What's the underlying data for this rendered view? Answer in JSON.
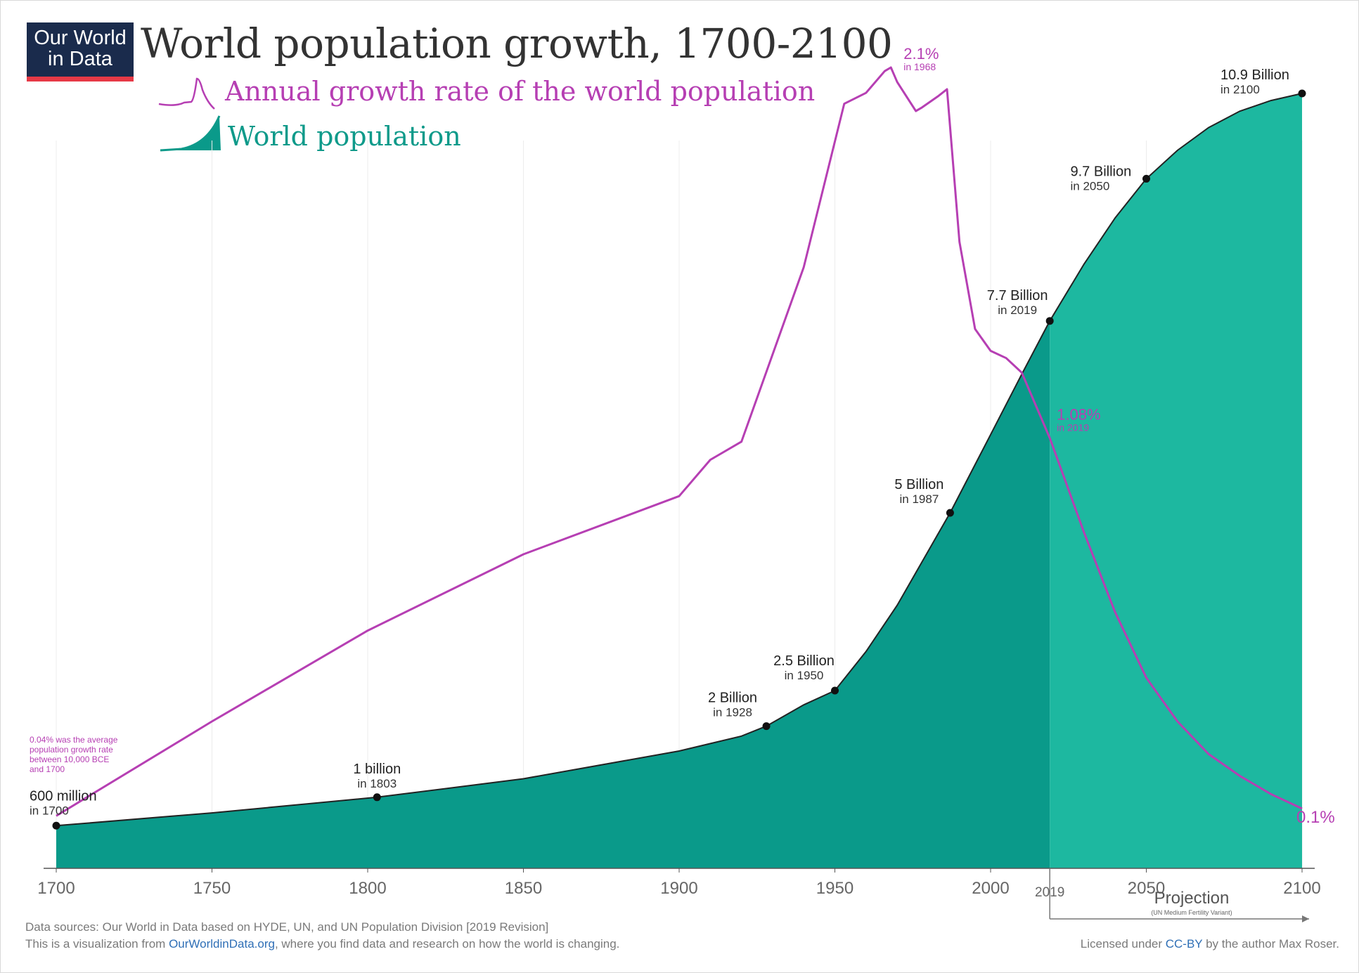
{
  "logo": {
    "line1": "Our World",
    "line2": "in Data"
  },
  "title": "World population growth, 1700-2100",
  "legend": {
    "growth_label": "Annual growth rate of the world population",
    "population_label": "World population"
  },
  "colors": {
    "population_fill": "#0a9a8a",
    "projection_fill": "#1db8a0",
    "growth_line": "#b63fb3",
    "population_line": "#222222"
  },
  "footer": {
    "sources": "Data sources: Our World in Data based on HYDE, UN, and UN Population Division [2019 Revision]",
    "visualization_prefix": "This is a visualization from ",
    "visualization_link": "OurWorldinData.org",
    "visualization_suffix": ", where you find data and research on how the world is changing.",
    "license_prefix": "Licensed under ",
    "license_link": "CC-BY",
    "license_suffix": " by the author Max Roser."
  },
  "chart_data": {
    "type": "area",
    "title": "World population growth, 1700-2100",
    "xlim": [
      1700,
      2100
    ],
    "x_ticks": [
      1700,
      1750,
      1800,
      1850,
      1900,
      1950,
      2000,
      2050,
      2100
    ],
    "projection_start_year": 2019,
    "projection_tick_label": "2019",
    "projection_label": "Projection",
    "projection_sublabel": "(UN Medium Fertility Variant)",
    "grid": true,
    "series": [
      {
        "name": "World population",
        "unit": "billion",
        "x": [
          1700,
          1750,
          1803,
          1850,
          1900,
          1920,
          1928,
          1940,
          1950,
          1960,
          1970,
          1987,
          2000,
          2010,
          2019,
          2030,
          2040,
          2050,
          2060,
          2070,
          2080,
          2090,
          2100
        ],
        "values": [
          0.6,
          0.78,
          1.0,
          1.26,
          1.65,
          1.86,
          2.0,
          2.3,
          2.5,
          3.05,
          3.7,
          5.0,
          6.1,
          6.95,
          7.7,
          8.5,
          9.15,
          9.7,
          10.1,
          10.42,
          10.65,
          10.8,
          10.9
        ]
      },
      {
        "name": "Annual growth rate of the world population",
        "unit": "%",
        "x": [
          1700,
          1750,
          1800,
          1850,
          1900,
          1910,
          1920,
          1940,
          1953,
          1960,
          1966,
          1968,
          1970,
          1976,
          1978,
          1983,
          1986,
          1990,
          1995,
          2000,
          2005,
          2010,
          2019,
          2030,
          2040,
          2050,
          2060,
          2070,
          2080,
          2090,
          2100
        ],
        "values": [
          0.04,
          0.3,
          0.55,
          0.76,
          0.92,
          1.02,
          1.07,
          1.55,
          2.0,
          2.03,
          2.09,
          2.1,
          2.06,
          1.98,
          1.99,
          2.02,
          2.04,
          1.62,
          1.38,
          1.32,
          1.3,
          1.26,
          1.08,
          0.82,
          0.6,
          0.42,
          0.3,
          0.21,
          0.15,
          0.1,
          0.06
        ]
      }
    ],
    "population_markers": [
      {
        "x": 1700,
        "value": 0.6,
        "label": "600 million",
        "sublabel": "in 1700"
      },
      {
        "x": 1803,
        "value": 1.0,
        "label": "1 billion",
        "sublabel": "in 1803"
      },
      {
        "x": 1928,
        "value": 2.0,
        "label": "2 Billion",
        "sublabel": "in 1928"
      },
      {
        "x": 1950,
        "value": 2.5,
        "label": "2.5 Billion",
        "sublabel": "in 1950"
      },
      {
        "x": 1987,
        "value": 5.0,
        "label": "5 Billion",
        "sublabel": "in 1987"
      },
      {
        "x": 2019,
        "value": 7.7,
        "label": "7.7 Billion",
        "sublabel": "in 2019"
      },
      {
        "x": 2050,
        "value": 9.7,
        "label": "9.7 Billion",
        "sublabel": "in 2050"
      },
      {
        "x": 2100,
        "value": 10.9,
        "label": "10.9 Billion",
        "sublabel": "in 2100"
      }
    ],
    "growth_annotations": [
      {
        "x": 1968,
        "value": 2.1,
        "label": "2.1%",
        "sublabel": "in 1968"
      },
      {
        "x": 2019,
        "value": 1.08,
        "label": "1.08%",
        "sublabel": "in 2019"
      },
      {
        "x": 2100,
        "value": 0.06,
        "label": "0.1%"
      }
    ],
    "growth_note": [
      "0.04% was the average",
      "population growth rate",
      "between 10,000 BCE",
      "and 1700"
    ]
  }
}
